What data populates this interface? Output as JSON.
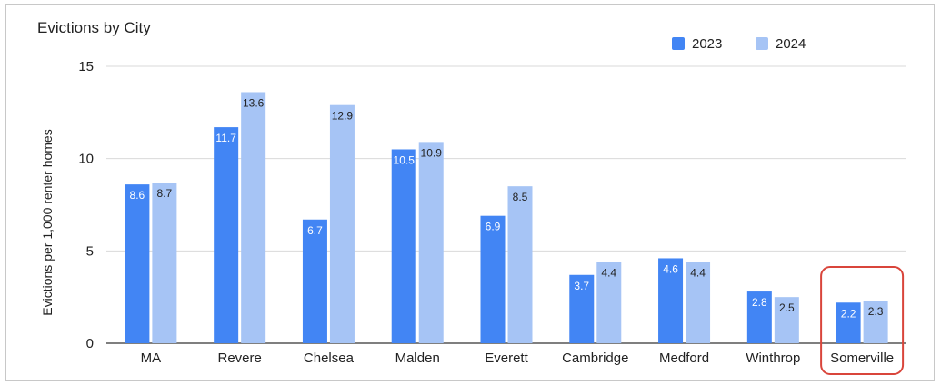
{
  "chart_data": {
    "type": "bar",
    "title": "Evictions by City",
    "xlabel": "",
    "ylabel": "Evictions per 1,000 renter homes",
    "ylim": [
      0,
      15
    ],
    "yticks": [
      0,
      5,
      10,
      15
    ],
    "grid": true,
    "legend_position": "top-right",
    "categories": [
      "MA",
      "Revere",
      "Chelsea",
      "Malden",
      "Everett",
      "Cambridge",
      "Medford",
      "Winthrop",
      "Somerville"
    ],
    "highlighted_category": "Somerville",
    "series": [
      {
        "name": "2023",
        "color": "#4285f4",
        "label_color": "#ffffff",
        "values": [
          8.6,
          11.7,
          6.7,
          10.5,
          6.9,
          3.7,
          4.6,
          2.8,
          2.2
        ]
      },
      {
        "name": "2024",
        "color": "#a6c4f5",
        "label_color": "#222222",
        "values": [
          8.7,
          13.6,
          12.9,
          10.9,
          8.5,
          4.4,
          4.4,
          2.5,
          2.3
        ]
      }
    ],
    "data_labels": [
      [
        "8.6",
        "11.7",
        "6.7",
        "10.5",
        "6.9",
        "3.7",
        "4.6",
        "2.8",
        "2.2"
      ],
      [
        "8.7",
        "13.6",
        "12.9",
        "10.9",
        "8.5",
        "4.4",
        "4.4",
        "2.5",
        "2.3"
      ]
    ],
    "highlight_color": "#d9453b"
  }
}
